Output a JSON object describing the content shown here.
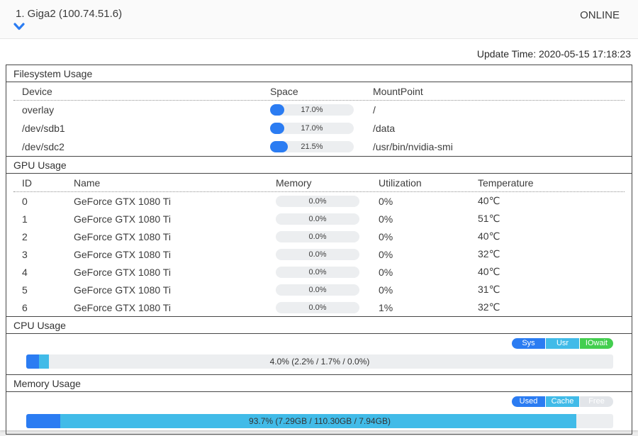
{
  "header": {
    "title": "1. Giga2 (100.74.51.6)",
    "status": "ONLINE"
  },
  "update_time": "Update Time: 2020-05-15 17:18:23",
  "colors": {
    "accent_blue": "#2b7cf2",
    "cyan": "#41bbe8",
    "green": "#43ce4f",
    "free_gray": "#e2e5e9",
    "bar_bg": "#eceef0"
  },
  "filesystem": {
    "title": "Filesystem Usage",
    "columns": [
      "Device",
      "Space",
      "MountPoint"
    ],
    "rows": [
      {
        "device": "overlay",
        "space_pct": 17.0,
        "space_label": "17.0%",
        "mount": "/"
      },
      {
        "device": "/dev/sdb1",
        "space_pct": 17.0,
        "space_label": "17.0%",
        "mount": "/data"
      },
      {
        "device": "/dev/sdc2",
        "space_pct": 21.5,
        "space_label": "21.5%",
        "mount": "/usr/bin/nvidia-smi"
      }
    ]
  },
  "gpu": {
    "title": "GPU Usage",
    "columns": [
      "ID",
      "Name",
      "Memory",
      "Utilization",
      "Temperature"
    ],
    "rows": [
      {
        "id": "0",
        "name": "GeForce GTX 1080 Ti",
        "memory_pct": 0,
        "memory_label": "0.0%",
        "utilization": "0%",
        "temperature": "40℃"
      },
      {
        "id": "1",
        "name": "GeForce GTX 1080 Ti",
        "memory_pct": 0,
        "memory_label": "0.0%",
        "utilization": "0%",
        "temperature": "51℃"
      },
      {
        "id": "2",
        "name": "GeForce GTX 1080 Ti",
        "memory_pct": 0,
        "memory_label": "0.0%",
        "utilization": "0%",
        "temperature": "40℃"
      },
      {
        "id": "3",
        "name": "GeForce GTX 1080 Ti",
        "memory_pct": 0,
        "memory_label": "0.0%",
        "utilization": "0%",
        "temperature": "32℃"
      },
      {
        "id": "4",
        "name": "GeForce GTX 1080 Ti",
        "memory_pct": 0,
        "memory_label": "0.0%",
        "utilization": "0%",
        "temperature": "40℃"
      },
      {
        "id": "5",
        "name": "GeForce GTX 1080 Ti",
        "memory_pct": 0,
        "memory_label": "0.0%",
        "utilization": "0%",
        "temperature": "31℃"
      },
      {
        "id": "6",
        "name": "GeForce GTX 1080 Ti",
        "memory_pct": 0,
        "memory_label": "0.0%",
        "utilization": "1%",
        "temperature": "32℃"
      }
    ]
  },
  "cpu": {
    "title": "CPU Usage",
    "legend": [
      {
        "label": "Sys",
        "color": "#2b7cf2"
      },
      {
        "label": "Usr",
        "color": "#41bbe8"
      },
      {
        "label": "IOwait",
        "color": "#43ce4f"
      }
    ],
    "bar": {
      "label": "4.0% (2.2% / 1.7% / 0.0%)",
      "segments": [
        {
          "name": "sys",
          "pct": 2.2,
          "color": "#2b7cf2"
        },
        {
          "name": "usr",
          "pct": 1.7,
          "color": "#41bbe8"
        },
        {
          "name": "iowait",
          "pct": 0.0,
          "color": "#43ce4f"
        }
      ]
    }
  },
  "memory": {
    "title": "Memory Usage",
    "legend": [
      {
        "label": "Used",
        "color": "#2b7cf2"
      },
      {
        "label": "Cache",
        "color": "#41bbe8"
      },
      {
        "label": "Free",
        "color": "#e2e5e9"
      }
    ],
    "bar": {
      "label": "93.7% (7.29GB / 110.30GB / 7.94GB)",
      "segments": [
        {
          "name": "used",
          "pct": 5.8,
          "color": "#2b7cf2"
        },
        {
          "name": "cache",
          "pct": 87.9,
          "color": "#41bbe8"
        }
      ]
    }
  },
  "chart_data": [
    {
      "type": "bar",
      "title": "Filesystem Usage",
      "categories": [
        "overlay",
        "/dev/sdb1",
        "/dev/sdc2"
      ],
      "values": [
        17.0,
        17.0,
        21.5
      ],
      "ylabel": "Space %",
      "ylim": [
        0,
        100
      ]
    },
    {
      "type": "bar",
      "title": "GPU Memory Usage %",
      "categories": [
        "0",
        "1",
        "2",
        "3",
        "4",
        "5",
        "6"
      ],
      "values": [
        0,
        0,
        0,
        0,
        0,
        0,
        0
      ],
      "ylim": [
        0,
        100
      ]
    },
    {
      "type": "bar",
      "title": "CPU Usage",
      "categories": [
        "Sys",
        "Usr",
        "IOwait"
      ],
      "values": [
        2.2,
        1.7,
        0.0
      ],
      "ylim": [
        0,
        100
      ]
    },
    {
      "type": "bar",
      "title": "Memory Usage GB",
      "categories": [
        "Used",
        "Cache",
        "Free"
      ],
      "values": [
        7.29,
        110.3,
        7.94
      ]
    }
  ]
}
